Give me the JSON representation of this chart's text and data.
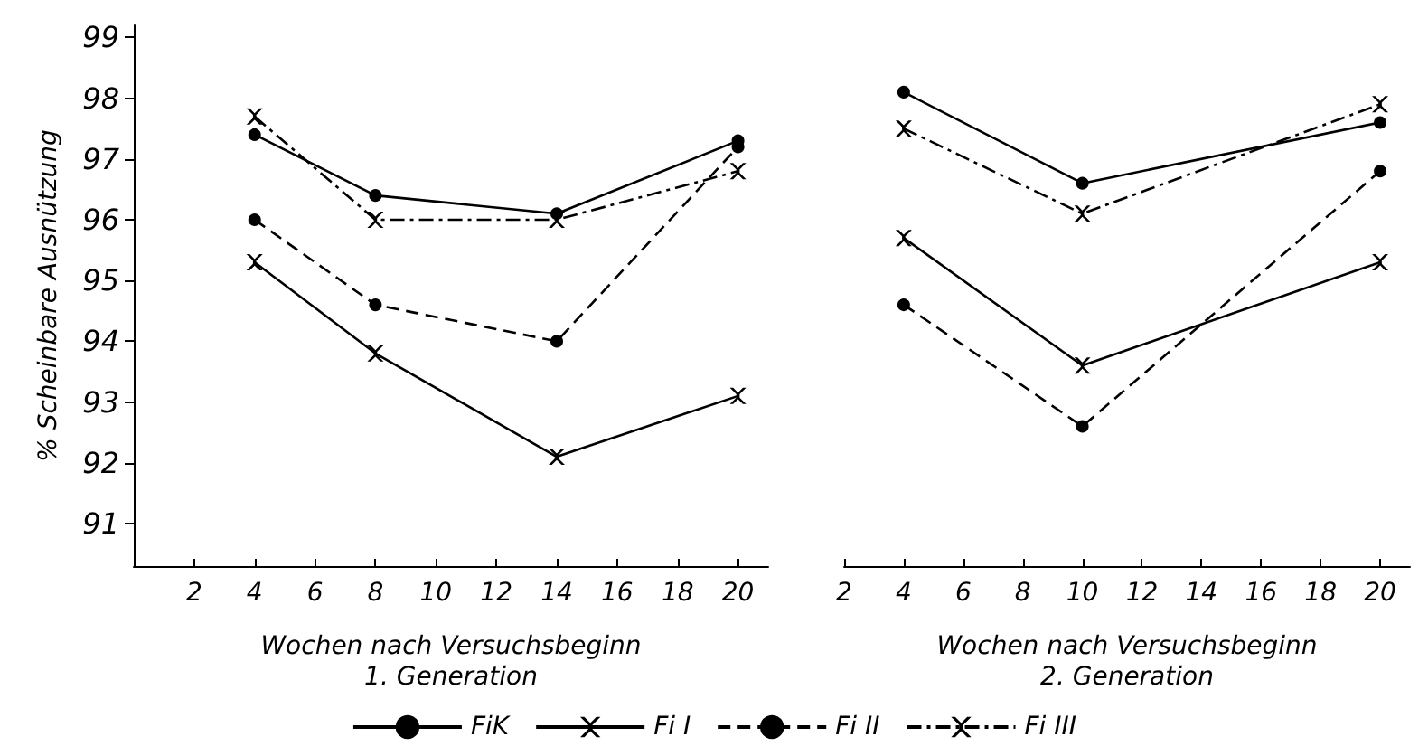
{
  "chart_data": [
    {
      "type": "line",
      "xlabel": "Wochen nach Versuchsbeginn\n1. Generation",
      "ylabel": "% Scheinbare Ausnützung",
      "x": [
        4,
        8,
        14,
        20
      ],
      "xlim": [
        0,
        21
      ],
      "xticks": [
        2,
        4,
        6,
        8,
        10,
        12,
        14,
        16,
        18,
        20
      ],
      "ylim": [
        90.3,
        99.2
      ],
      "yticks": [
        91,
        92,
        93,
        94,
        95,
        96,
        97,
        98,
        99
      ],
      "grid": false,
      "legend": "bottom",
      "series": [
        {
          "name": "FiK",
          "color": "#000000",
          "marker": "circle",
          "line_style": "solid",
          "values": [
            97.4,
            96.4,
            96.1,
            97.3
          ]
        },
        {
          "name": "Fi I",
          "color": "#000000",
          "marker": "cross",
          "line_style": "solid",
          "values": [
            95.3,
            93.8,
            92.1,
            93.1
          ]
        },
        {
          "name": "Fi II",
          "color": "#000000",
          "marker": "circle",
          "line_style": "dashed",
          "values": [
            96.0,
            94.6,
            94.0,
            97.2
          ]
        },
        {
          "name": "Fi III",
          "color": "#000000",
          "marker": "cross",
          "line_style": "dashdot",
          "values": [
            97.7,
            96.0,
            96.0,
            96.8
          ]
        }
      ]
    },
    {
      "type": "line",
      "xlabel": "Wochen nach Versuchsbeginn\n2. Generation",
      "x": [
        4,
        10,
        20
      ],
      "xlim": [
        2,
        21
      ],
      "xticks": [
        2,
        4,
        6,
        8,
        10,
        12,
        14,
        16,
        18,
        20
      ],
      "ylim": [
        90.3,
        99
      ],
      "yticks": [
        91,
        92,
        93,
        94,
        95,
        96,
        97,
        98,
        99
      ],
      "tick_labels": "x",
      "grid": false,
      "legend": false,
      "series": [
        {
          "color": "#000000",
          "marker": "circle",
          "line_style": "solid",
          "values": [
            98.1,
            96.6,
            97.6
          ]
        },
        {
          "color": "#000000",
          "marker": "cross",
          "line_style": "solid",
          "values": [
            95.7,
            93.6,
            95.3
          ]
        },
        {
          "color": "#000000",
          "marker": "circle",
          "line_style": "dashed",
          "values": [
            94.6,
            92.6,
            96.8
          ]
        },
        {
          "color": "#000000",
          "marker": "cross",
          "line_style": "dashdot",
          "values": [
            97.5,
            96.1,
            97.9
          ]
        }
      ]
    }
  ]
}
